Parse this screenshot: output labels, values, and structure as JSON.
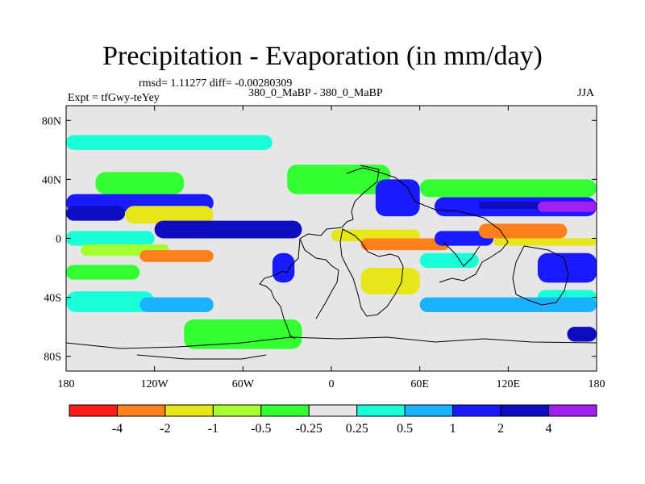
{
  "chart_data": {
    "type": "heatmap",
    "title": "Precipitation - Evaporation (in mm/day)",
    "stats": "rmsd= 1.11277  diff= -0.00280309",
    "left_label": "Expt = tfGwy-teYey",
    "center_label": "380_0_MaBP - 380_0_MaBP",
    "right_label": "JJA",
    "x_axis": {
      "range": [
        -180,
        180
      ],
      "ticks": [
        "180",
        "120W",
        "60W",
        "0",
        "60E",
        "120E",
        "180"
      ]
    },
    "y_axis": {
      "range": [
        -90,
        90
      ],
      "ticks": [
        "80N",
        "40N",
        "0",
        "40S",
        "80S"
      ]
    },
    "colorbar": {
      "levels": [
        "-4",
        "-2",
        "-1",
        "-0.5",
        "-0.25",
        "0.25",
        "0.5",
        "1",
        "2",
        "4"
      ],
      "colors": [
        "#ff1a1a",
        "#ff7f1a",
        "#e6e619",
        "#a6ff33",
        "#33ff33",
        "#e6e6e6",
        "#19ffd9",
        "#1ab2ff",
        "#1a1aff",
        "#0d0dbf",
        "#a020f0"
      ]
    },
    "bands": [
      {
        "lon": [
          -180,
          -40
        ],
        "lat": [
          60,
          70
        ],
        "value": 0.4
      },
      {
        "lon": [
          -160,
          -100
        ],
        "lat": [
          30,
          45
        ],
        "value": -0.35
      },
      {
        "lon": [
          -180,
          -80
        ],
        "lat": [
          18,
          30
        ],
        "value": 1.5
      },
      {
        "lon": [
          -180,
          -140
        ],
        "lat": [
          12,
          22
        ],
        "value": 3.0
      },
      {
        "lon": [
          -140,
          -80
        ],
        "lat": [
          10,
          22
        ],
        "value": -1.5
      },
      {
        "lon": [
          -120,
          -20
        ],
        "lat": [
          0,
          12
        ],
        "value": 3.0
      },
      {
        "lon": [
          -180,
          -120
        ],
        "lat": [
          -5,
          5
        ],
        "value": 0.35
      },
      {
        "lon": [
          -170,
          -110
        ],
        "lat": [
          -12,
          -4
        ],
        "value": -0.6
      },
      {
        "lon": [
          -130,
          -80
        ],
        "lat": [
          -16,
          -8
        ],
        "value": -2.5
      },
      {
        "lon": [
          -180,
          -130
        ],
        "lat": [
          -28,
          -18
        ],
        "value": -0.4
      },
      {
        "lon": [
          -180,
          -120
        ],
        "lat": [
          -50,
          -36
        ],
        "value": 0.4
      },
      {
        "lon": [
          -130,
          -80
        ],
        "lat": [
          -50,
          -40
        ],
        "value": 0.8
      },
      {
        "lon": [
          -40,
          -25
        ],
        "lat": [
          -30,
          -10
        ],
        "value": 1.5
      },
      {
        "lon": [
          -100,
          -20
        ],
        "lat": [
          -75,
          -55
        ],
        "value": -0.4
      },
      {
        "lon": [
          -30,
          40
        ],
        "lat": [
          30,
          50
        ],
        "value": -0.4
      },
      {
        "lon": [
          30,
          60
        ],
        "lat": [
          15,
          40
        ],
        "value": 1.5
      },
      {
        "lon": [
          70,
          180
        ],
        "lat": [
          15,
          28
        ],
        "value": 1.5
      },
      {
        "lon": [
          100,
          180
        ],
        "lat": [
          20,
          25
        ],
        "value": 3.0
      },
      {
        "lon": [
          140,
          180
        ],
        "lat": [
          18,
          25
        ],
        "value": 5.0
      },
      {
        "lon": [
          60,
          180
        ],
        "lat": [
          28,
          40
        ],
        "value": -0.4
      },
      {
        "lon": [
          0,
          60
        ],
        "lat": [
          -2,
          6
        ],
        "value": -1.5
      },
      {
        "lon": [
          20,
          80
        ],
        "lat": [
          -8,
          0
        ],
        "value": -2.5
      },
      {
        "lon": [
          70,
          110
        ],
        "lat": [
          -5,
          5
        ],
        "value": 1.0
      },
      {
        "lon": [
          100,
          160
        ],
        "lat": [
          0,
          10
        ],
        "value": -3.0
      },
      {
        "lon": [
          110,
          180
        ],
        "lat": [
          -5,
          0
        ],
        "value": -1.5
      },
      {
        "lon": [
          60,
          100
        ],
        "lat": [
          -20,
          -10
        ],
        "value": 0.35
      },
      {
        "lon": [
          20,
          60
        ],
        "lat": [
          -38,
          -20
        ],
        "value": -1.5
      },
      {
        "lon": [
          140,
          180
        ],
        "lat": [
          -30,
          -10
        ],
        "value": 1.5
      },
      {
        "lon": [
          140,
          180
        ],
        "lat": [
          -45,
          -35
        ],
        "value": 0.4
      },
      {
        "lon": [
          60,
          180
        ],
        "lat": [
          -50,
          -40
        ],
        "value": 0.6
      },
      {
        "lon": [
          160,
          180
        ],
        "lat": [
          -70,
          -60
        ],
        "value": 3.0
      }
    ]
  }
}
